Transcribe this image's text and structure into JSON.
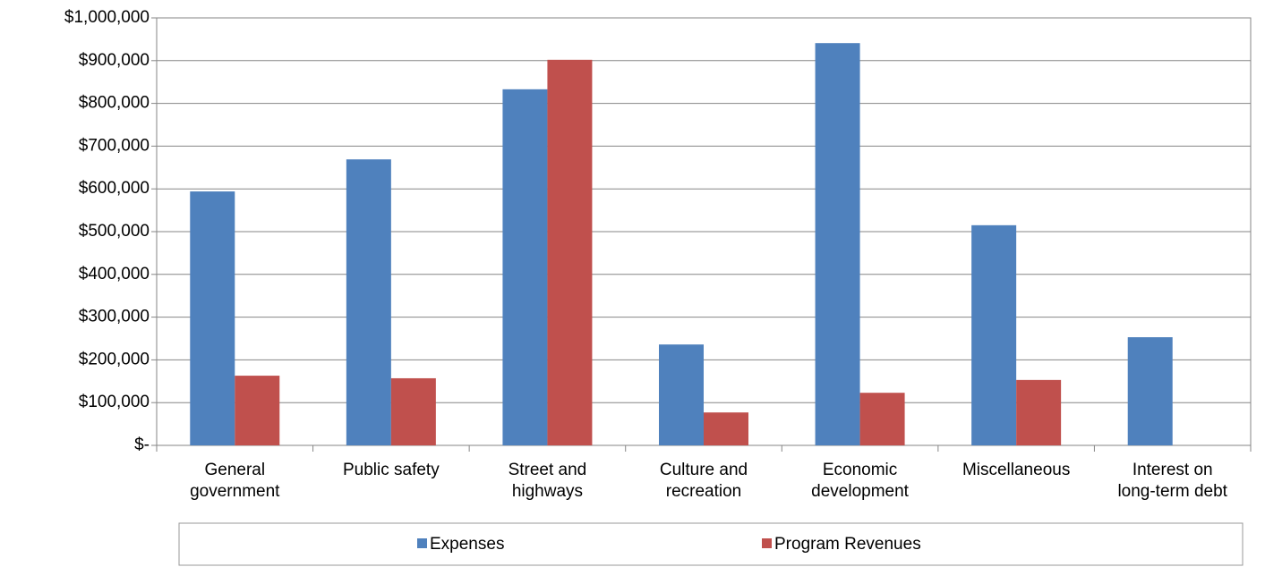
{
  "chart_data": {
    "type": "bar",
    "categories": [
      "General\ngovernment",
      "Public safety",
      "Street and\nhighways",
      "Culture and\nrecreation",
      "Economic\ndevelopment",
      "Miscellaneous",
      "Interest on\nlong-term debt"
    ],
    "series": [
      {
        "name": "Expenses",
        "color": "#4f81bd",
        "values": [
          594000,
          669000,
          833000,
          236000,
          941000,
          515000,
          253000
        ]
      },
      {
        "name": "Program Revenues",
        "color": "#c0504d",
        "values": [
          163000,
          157000,
          902000,
          77000,
          123000,
          153000,
          0
        ]
      }
    ],
    "ylim": [
      0,
      1000000
    ],
    "yticks": [
      {
        "value": 0,
        "label": "$-"
      },
      {
        "value": 100000,
        "label": "$100,000"
      },
      {
        "value": 200000,
        "label": "$200,000"
      },
      {
        "value": 300000,
        "label": "$300,000"
      },
      {
        "value": 400000,
        "label": "$400,000"
      },
      {
        "value": 500000,
        "label": "$500,000"
      },
      {
        "value": 600000,
        "label": "$600,000"
      },
      {
        "value": 700000,
        "label": "$700,000"
      },
      {
        "value": 800000,
        "label": "$800,000"
      },
      {
        "value": 900000,
        "label": "$900,000"
      },
      {
        "value": 1000000,
        "label": "$1,000,000"
      }
    ],
    "grid": true,
    "legend": "bottom"
  }
}
